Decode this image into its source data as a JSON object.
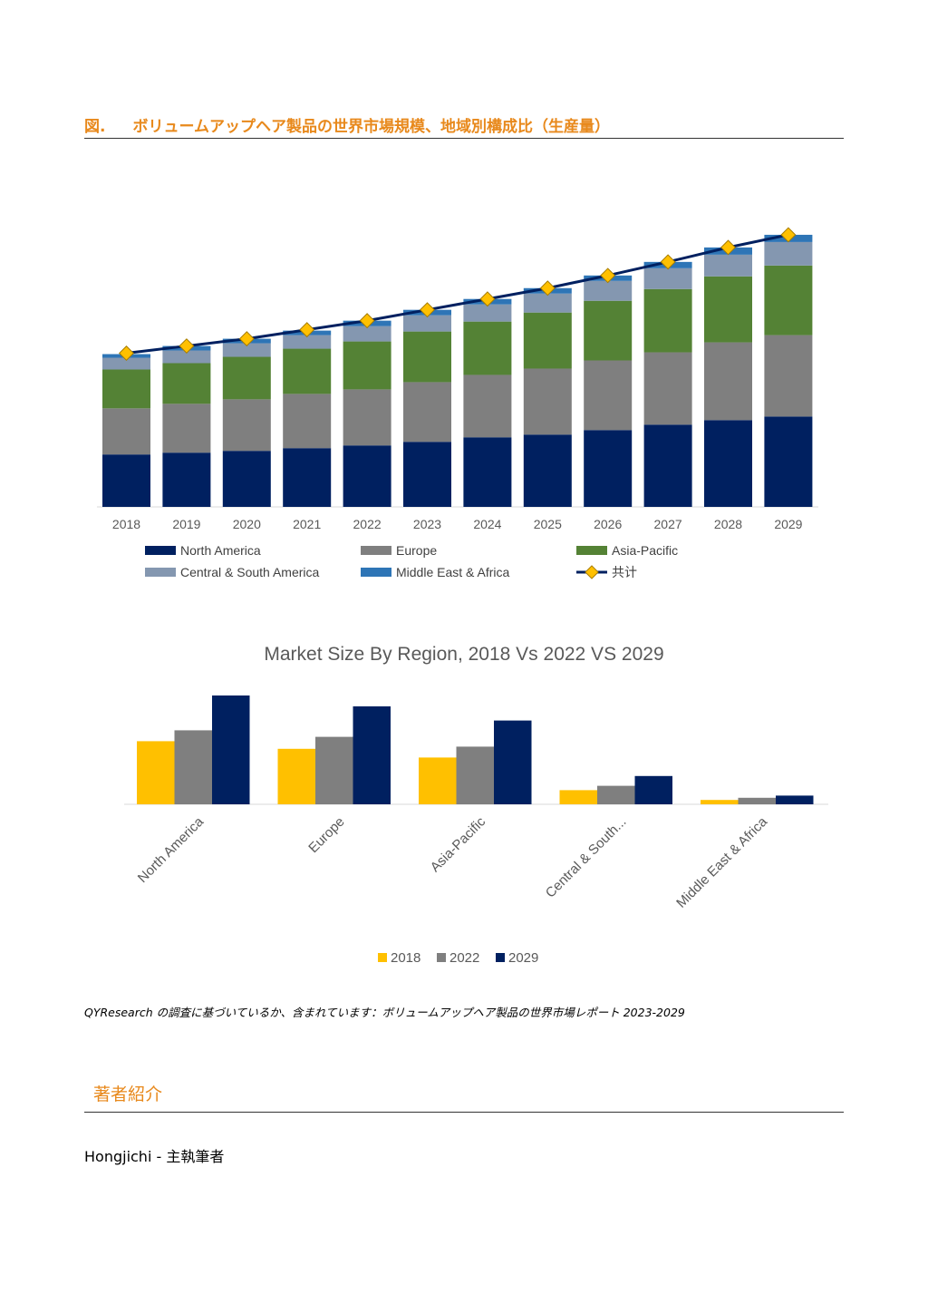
{
  "figure": {
    "label": "図.",
    "title": "ボリュームアップヘア製品の世界市場規模、地域別構成比（生産量）"
  },
  "chart_data": [
    {
      "type": "bar",
      "stacked": true,
      "title": "",
      "categories": [
        "2018",
        "2019",
        "2020",
        "2021",
        "2022",
        "2023",
        "2024",
        "2025",
        "2026",
        "2027",
        "2028",
        "2029"
      ],
      "series": [
        {
          "name": "North America",
          "color": "#002060",
          "values": [
            58,
            60,
            62,
            65,
            68,
            72,
            77,
            80,
            85,
            91,
            96,
            100
          ]
        },
        {
          "name": "Europe",
          "color": "#7f7f7f",
          "values": [
            51,
            54,
            57,
            60,
            62,
            66,
            69,
            73,
            77,
            80,
            86,
            90
          ]
        },
        {
          "name": "Asia-Pacific",
          "color": "#548235",
          "values": [
            43,
            45,
            47,
            50,
            53,
            56,
            59,
            62,
            66,
            70,
            73,
            77
          ]
        },
        {
          "name": "Central & South America",
          "color": "#8497b0",
          "values": [
            13,
            14,
            15,
            15,
            17,
            18,
            19,
            21,
            22,
            23,
            24,
            26
          ]
        },
        {
          "name": "Middle East & Africa",
          "color": "#2e75b6",
          "values": [
            4,
            5,
            5,
            5,
            6,
            6,
            6,
            6,
            6,
            7,
            8,
            8
          ]
        }
      ],
      "total_line": {
        "name": "共计",
        "color": "#002060",
        "marker_color": "#ffc000",
        "values": [
          170,
          178,
          186,
          196,
          206,
          218,
          230,
          242,
          256,
          271,
          287,
          301
        ]
      },
      "ylim": [
        0,
        320
      ],
      "grid": false,
      "legend_position": "bottom"
    },
    {
      "type": "bar",
      "title": "Market Size By Region, 2018 Vs 2022 VS 2029",
      "categories": [
        "North America",
        "Europe",
        "Asia-Pacific",
        "Central & South...",
        "Middle East & Africa"
      ],
      "series": [
        {
          "name": "2018",
          "color": "#ffc000",
          "values": [
            58,
            51,
            43,
            13,
            4
          ]
        },
        {
          "name": "2022",
          "color": "#7f7f7f",
          "values": [
            68,
            62,
            53,
            17,
            6
          ]
        },
        {
          "name": "2029",
          "color": "#002060",
          "values": [
            100,
            90,
            77,
            26,
            8
          ]
        }
      ],
      "ylim": [
        0,
        100
      ],
      "grid": false,
      "legend_position": "bottom"
    }
  ],
  "source_note": "QYResearch の調査に基づいているか、含まれています：ボリュームアップヘア製品の世界市場レポート 2023-2029",
  "author_section": {
    "heading": "著者紹介",
    "author_line": "Hongjichi - 主執筆者"
  }
}
